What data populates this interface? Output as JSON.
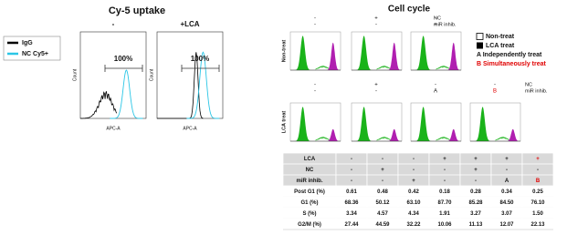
{
  "left": {
    "title": "Cy-5 uptake",
    "legend": [
      "IgG",
      "NC Cy5+"
    ],
    "panels": [
      {
        "label": "-",
        "gate": "100%"
      },
      {
        "label": "+LCA",
        "gate": "100%"
      }
    ],
    "x_axis": "APC-A",
    "y_axis": "Count"
  },
  "right": {
    "title": "Cell cycle",
    "row_labels": [
      "Non-treat",
      "LCA treat"
    ],
    "header_rows": [
      {
        "NC": [
          "-",
          "+",
          "-"
        ],
        "miR": [
          "-",
          "-",
          "+"
        ],
        "labels": [
          "NC",
          "miR inhib."
        ]
      },
      {
        "NC": [
          "-",
          "+",
          "-",
          "-"
        ],
        "miR": [
          "-",
          "-",
          "A",
          "B"
        ],
        "labels": [
          "NC",
          "miR inhib."
        ]
      }
    ],
    "legend": [
      "Non-treat",
      "LCA treat",
      "A  Independently treat",
      "B  Simultaneously treat"
    ],
    "table": {
      "rows": [
        [
          "LCA",
          "-",
          "-",
          "-",
          "+",
          "+",
          "+",
          "+"
        ],
        [
          "NC",
          "-",
          "+",
          "-",
          "-",
          "+",
          "-",
          "-"
        ],
        [
          "miR inhib.",
          "-",
          "-",
          "+",
          "-",
          "-",
          "A",
          "B"
        ],
        [
          "Post G1 (%)",
          "0.61",
          "0.48",
          "0.42",
          "0.18",
          "0.28",
          "0.34",
          "0.25"
        ],
        [
          "G1 (%)",
          "68.36",
          "50.12",
          "63.10",
          "87.70",
          "85.28",
          "84.50",
          "76.10"
        ],
        [
          "S (%)",
          "3.34",
          "4.57",
          "4.34",
          "1.91",
          "3.27",
          "3.07",
          "1.50"
        ],
        [
          "G2/M (%)",
          "27.44",
          "44.59",
          "32.22",
          "10.06",
          "11.13",
          "12.07",
          "22.13"
        ]
      ]
    }
  }
}
